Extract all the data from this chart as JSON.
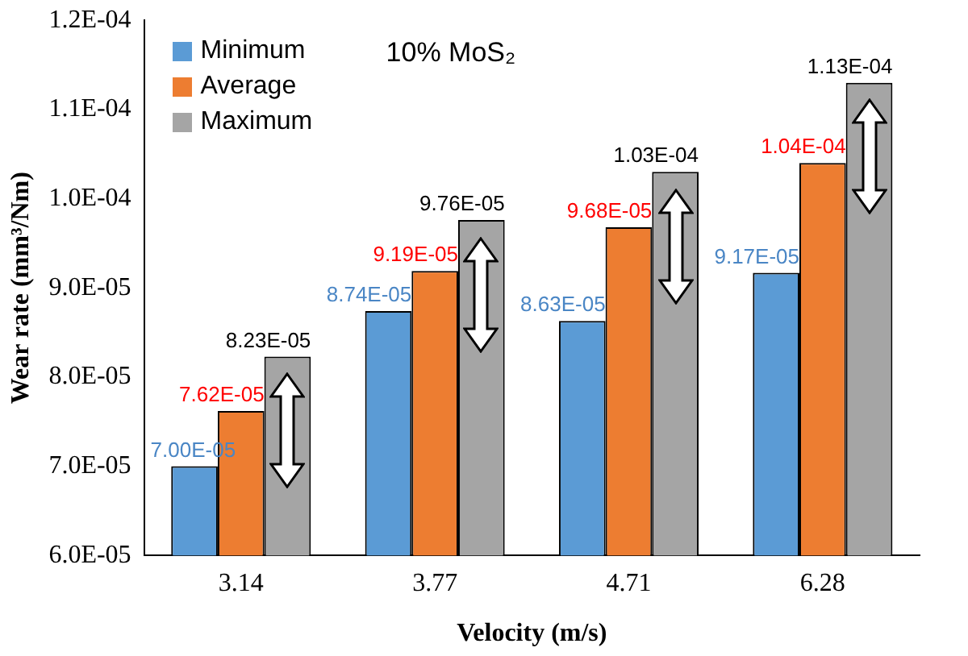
{
  "chart_data": {
    "type": "bar",
    "xlabel": "Velocity (m/s)",
    "ylabel": "Wear rate (mm³/Nm)",
    "annotations": [
      "10% MoS₂"
    ],
    "categories": [
      "3.14",
      "3.77",
      "4.71",
      "6.28"
    ],
    "series": [
      {
        "name": "Minimum",
        "color": "#5b9bd5",
        "values": [
          7e-05,
          8.74e-05,
          8.63e-05,
          9.17e-05
        ],
        "value_labels": [
          "7.00E-05",
          "8.74E-05",
          "8.63E-05",
          "9.17E-05"
        ]
      },
      {
        "name": "Average",
        "color": "#ed7d31",
        "values": [
          7.62e-05,
          9.19e-05,
          9.68e-05,
          0.000104
        ],
        "value_labels": [
          "7.62E-05",
          "9.19E-05",
          "9.68E-05",
          "1.04E-04"
        ]
      },
      {
        "name": "Maximum",
        "color": "#a5a5a5",
        "values": [
          8.23e-05,
          9.76e-05,
          0.000103,
          0.000113
        ],
        "value_labels": [
          "8.23E-05",
          "9.76E-05",
          "1.03E-04",
          "1.13E-04"
        ]
      }
    ],
    "ylim": [
      6e-05,
      0.00012
    ],
    "yticks": [
      {
        "value": 6e-05,
        "label": "6.0E-05"
      },
      {
        "value": 7e-05,
        "label": "7.0E-05"
      },
      {
        "value": 8e-05,
        "label": "8.0E-05"
      },
      {
        "value": 9e-05,
        "label": "9.0E-05"
      },
      {
        "value": 0.0001,
        "label": "1.0E-04"
      },
      {
        "value": 0.00011,
        "label": "1.1E-04"
      },
      {
        "value": 0.00012,
        "label": "1.2E-04"
      }
    ],
    "grid": false,
    "legend": "top left"
  }
}
